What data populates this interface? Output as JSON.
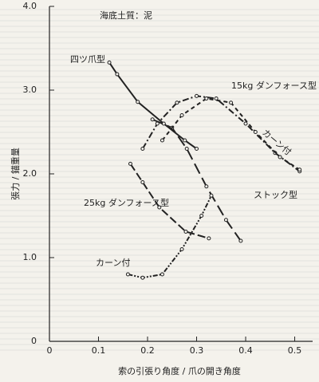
{
  "chart_data": {
    "type": "line",
    "annotation": "海底土質：泥",
    "x_label": "索の引張り角度 / 爪の開き角度",
    "y_label": "張力 / 錨重量",
    "xlim": [
      0,
      0.53
    ],
    "ylim": [
      0,
      4.0
    ],
    "xticks": [
      0,
      0.1,
      0.2,
      0.3,
      0.4,
      0.5
    ],
    "yticks": [
      0,
      {
        "value": 1,
        "label": "1.0"
      },
      {
        "value": 2,
        "label": "2.0"
      },
      {
        "value": 3,
        "label": "3.0"
      },
      {
        "value": 4,
        "label": "4.0"
      }
    ],
    "series": [
      {
        "name": "四ツ爪型",
        "color": "#222222",
        "x": [
          0.122,
          0.138,
          0.18,
          0.233,
          0.276,
          0.3
        ],
        "values": [
          3.33,
          3.19,
          2.86,
          2.6,
          2.4,
          2.3
        ]
      },
      {
        "name": "ストック型",
        "color": "#222222",
        "x": [
          0.21,
          0.25,
          0.28,
          0.32,
          0.36,
          0.39
        ],
        "values": [
          2.65,
          2.55,
          2.3,
          1.85,
          1.45,
          1.2
        ]
      },
      {
        "name": "15kg ダンフォース型",
        "color": "#222222",
        "x": [
          0.19,
          0.22,
          0.26,
          0.3,
          0.34,
          0.4,
          0.46,
          0.51
        ],
        "values": [
          2.3,
          2.6,
          2.85,
          2.93,
          2.9,
          2.6,
          2.25,
          2.03
        ]
      },
      {
        "name": "カーン付",
        "color": "#222222",
        "x": [
          0.23,
          0.27,
          0.32,
          0.37,
          0.42,
          0.47,
          0.51
        ],
        "values": [
          2.4,
          2.7,
          2.9,
          2.85,
          2.5,
          2.2,
          2.05
        ]
      },
      {
        "name": "25kg ダンフォース型",
        "color": "#222222",
        "x": [
          0.165,
          0.19,
          0.224,
          0.278,
          0.325
        ],
        "values": [
          2.12,
          1.9,
          1.6,
          1.31,
          1.23
        ]
      },
      {
        "name": "カーン付",
        "color": "#222222",
        "x": [
          0.16,
          0.19,
          0.23,
          0.27,
          0.31,
          0.33
        ],
        "values": [
          0.8,
          0.76,
          0.8,
          1.1,
          1.5,
          1.74
        ]
      }
    ]
  }
}
